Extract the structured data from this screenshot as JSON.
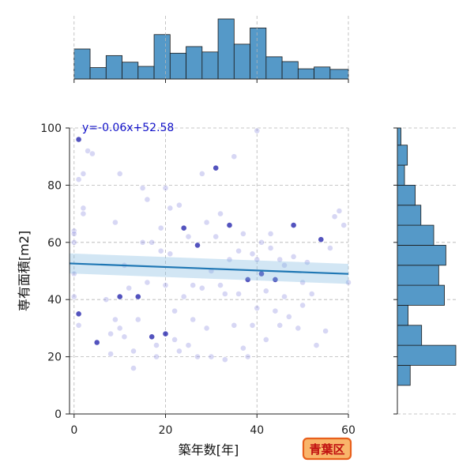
{
  "chart_data": {
    "type": "scatter",
    "title": "",
    "xlabel": "築年数[年]",
    "ylabel": "専有面積[m2]",
    "xlim": [
      -1,
      60
    ],
    "ylim": [
      0,
      100
    ],
    "x_ticks": [
      0,
      20,
      40,
      60
    ],
    "y_ticks": [
      0,
      20,
      40,
      60,
      80,
      100
    ],
    "grid": true,
    "regression": {
      "slope": -0.06,
      "intercept": 52.58,
      "label": "y=-0.06x+52.58"
    },
    "top_histogram": {
      "bin_edges": [
        0,
        3.5,
        7,
        10.5,
        14,
        17.5,
        21,
        24.5,
        28,
        31.5,
        35,
        38.5,
        42,
        45.5,
        49,
        52.5,
        56,
        60
      ],
      "counts": [
        50,
        19,
        39,
        28,
        21,
        74,
        43,
        54,
        45,
        100,
        58,
        85,
        37,
        29,
        17,
        20,
        16
      ]
    },
    "right_histogram": {
      "bin_edges": [
        10,
        17,
        24,
        31,
        38,
        45,
        52,
        59,
        66,
        73,
        80,
        87,
        94,
        100
      ],
      "counts": [
        18,
        82,
        34,
        15,
        66,
        58,
        68,
        51,
        33,
        25,
        10,
        14,
        5
      ]
    },
    "series": [
      {
        "name": "points",
        "points": [
          [
            1,
            96
          ],
          [
            1,
            82
          ],
          [
            0,
            64
          ],
          [
            0,
            63
          ],
          [
            0,
            60
          ],
          [
            0,
            49
          ],
          [
            0,
            41
          ],
          [
            1,
            35
          ],
          [
            1,
            31
          ],
          [
            2,
            84
          ],
          [
            2,
            72
          ],
          [
            2,
            70
          ],
          [
            3,
            92
          ],
          [
            4,
            91
          ],
          [
            5,
            25
          ],
          [
            7,
            40
          ],
          [
            8,
            28
          ],
          [
            8,
            21
          ],
          [
            9,
            33
          ],
          [
            9,
            67
          ],
          [
            10,
            84
          ],
          [
            10,
            41
          ],
          [
            10,
            30
          ],
          [
            11,
            27
          ],
          [
            11,
            52
          ],
          [
            12,
            44
          ],
          [
            13,
            16
          ],
          [
            13,
            22
          ],
          [
            14,
            41
          ],
          [
            14,
            33
          ],
          [
            15,
            60
          ],
          [
            15,
            79
          ],
          [
            16,
            75
          ],
          [
            16,
            46
          ],
          [
            17,
            60
          ],
          [
            17,
            27
          ],
          [
            18,
            24
          ],
          [
            18,
            20
          ],
          [
            19,
            65
          ],
          [
            19,
            57
          ],
          [
            20,
            79
          ],
          [
            20,
            45
          ],
          [
            20,
            28
          ],
          [
            21,
            72
          ],
          [
            21,
            56
          ],
          [
            22,
            36
          ],
          [
            22,
            26
          ],
          [
            23,
            73
          ],
          [
            23,
            22
          ],
          [
            24,
            65
          ],
          [
            24,
            41
          ],
          [
            25,
            24
          ],
          [
            25,
            62
          ],
          [
            26,
            45
          ],
          [
            26,
            33
          ],
          [
            27,
            20
          ],
          [
            27,
            59
          ],
          [
            28,
            84
          ],
          [
            28,
            44
          ],
          [
            29,
            30
          ],
          [
            29,
            67
          ],
          [
            30,
            50
          ],
          [
            30,
            20
          ],
          [
            31,
            86
          ],
          [
            31,
            62
          ],
          [
            32,
            70
          ],
          [
            32,
            45
          ],
          [
            33,
            42
          ],
          [
            33,
            19
          ],
          [
            34,
            54
          ],
          [
            34,
            66
          ],
          [
            35,
            90
          ],
          [
            35,
            31
          ],
          [
            36,
            57
          ],
          [
            36,
            42
          ],
          [
            37,
            23
          ],
          [
            37,
            63
          ],
          [
            38,
            47
          ],
          [
            38,
            20
          ],
          [
            39,
            56
          ],
          [
            39,
            31
          ],
          [
            40,
            99
          ],
          [
            40,
            54
          ],
          [
            40,
            37
          ],
          [
            41,
            49
          ],
          [
            41,
            60
          ],
          [
            42,
            43
          ],
          [
            42,
            26
          ],
          [
            43,
            58
          ],
          [
            43,
            63
          ],
          [
            44,
            36
          ],
          [
            44,
            47
          ],
          [
            45,
            31
          ],
          [
            45,
            54
          ],
          [
            46,
            41
          ],
          [
            46,
            52
          ],
          [
            47,
            34
          ],
          [
            48,
            55
          ],
          [
            48,
            66
          ],
          [
            49,
            30
          ],
          [
            50,
            46
          ],
          [
            50,
            38
          ],
          [
            51,
            53
          ],
          [
            52,
            42
          ],
          [
            53,
            24
          ],
          [
            54,
            61
          ],
          [
            55,
            29
          ],
          [
            56,
            58
          ],
          [
            57,
            69
          ],
          [
            58,
            71
          ],
          [
            59,
            66
          ],
          [
            60,
            46
          ]
        ]
      }
    ]
  },
  "badge": {
    "label": "青葉区"
  }
}
